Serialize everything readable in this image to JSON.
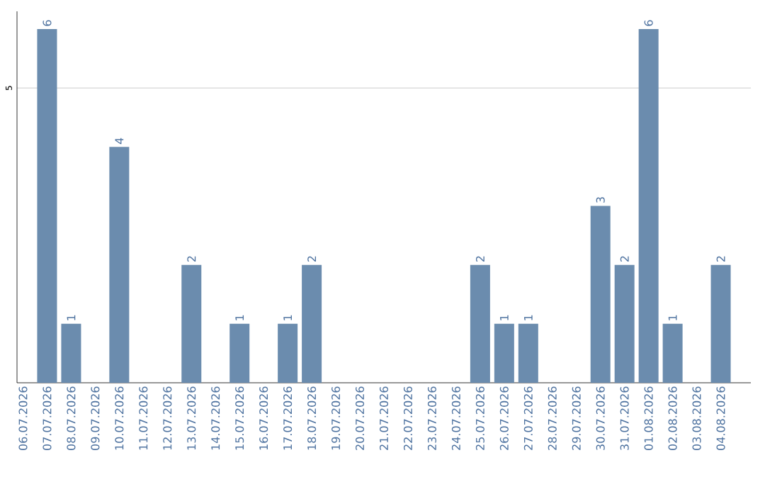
{
  "chart_data": {
    "type": "bar",
    "categories": [
      "06.07.2026",
      "07.07.2026",
      "08.07.2026",
      "09.07.2026",
      "10.07.2026",
      "11.07.2026",
      "12.07.2026",
      "13.07.2026",
      "14.07.2026",
      "15.07.2026",
      "16.07.2026",
      "17.07.2026",
      "18.07.2026",
      "19.07.2026",
      "20.07.2026",
      "21.07.2026",
      "22.07.2026",
      "23.07.2026",
      "24.07.2026",
      "25.07.2026",
      "26.07.2026",
      "27.07.2026",
      "28.07.2026",
      "29.07.2026",
      "30.07.2026",
      "31.07.2026",
      "01.08.2026",
      "02.08.2026",
      "03.08.2026",
      "04.08.2026"
    ],
    "values": [
      0,
      6,
      1,
      0,
      4,
      0,
      0,
      2,
      0,
      1,
      0,
      1,
      2,
      0,
      0,
      0,
      0,
      0,
      0,
      2,
      1,
      1,
      0,
      0,
      3,
      2,
      6,
      1,
      0,
      2
    ],
    "value_labels": [
      null,
      "6",
      "1",
      null,
      "4",
      null,
      null,
      "2",
      null,
      "1",
      null,
      "1",
      "2",
      null,
      null,
      null,
      null,
      null,
      null,
      "2",
      "1",
      "1",
      null,
      null,
      "3",
      "2",
      "6",
      "1",
      null,
      "2"
    ],
    "color": "#6b8cae",
    "ylim": [
      0,
      6.3
    ],
    "yticks": [
      5
    ],
    "grid": "y"
  }
}
